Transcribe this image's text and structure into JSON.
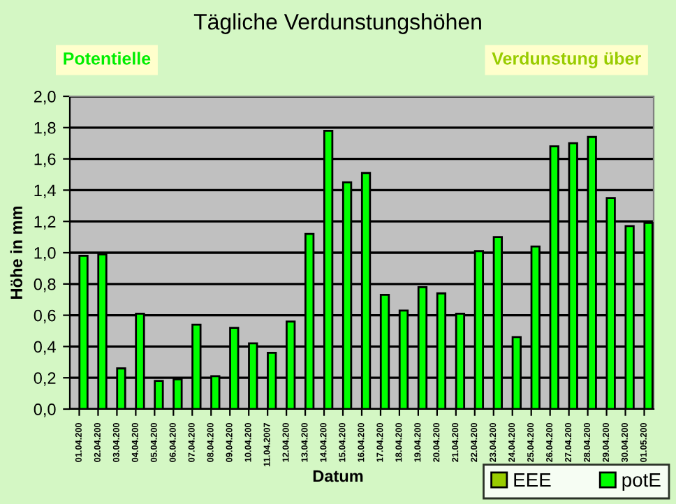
{
  "chart_data": {
    "type": "bar",
    "title": "Tägliche Verdunstungshöhen",
    "xlabel": "Datum",
    "ylabel": "Höhe in mm",
    "annotations": [
      "Potentielle",
      "Verdunstung über"
    ],
    "categories": [
      "01.04.200",
      "02.04.200",
      "03.04.200",
      "04.04.200",
      "05.04.200",
      "06.04.200",
      "07.04.200",
      "08.04.200",
      "09.04.200",
      "10.04.200",
      "11.04.2007",
      "12.04.200",
      "13.04.200",
      "14.04.200",
      "15.04.200",
      "16.04.200",
      "17.04.200",
      "18.04.200",
      "19.04.200",
      "20.04.200",
      "21.04.200",
      "22.04.200",
      "23.04.200",
      "24.04.200",
      "25.04.200",
      "26.04.200",
      "27.04.200",
      "28.04.200",
      "29.04.200",
      "30.04.200",
      "01.05.200"
    ],
    "series": [
      {
        "name": "EEE",
        "color": "#99cc00",
        "values": [
          null,
          null,
          null,
          null,
          null,
          null,
          null,
          null,
          null,
          null,
          null,
          null,
          null,
          null,
          null,
          null,
          null,
          null,
          null,
          null,
          null,
          null,
          null,
          null,
          null,
          null,
          null,
          null,
          null,
          null,
          null
        ]
      },
      {
        "name": "potE",
        "color": "#00ff00",
        "values": [
          0.98,
          0.99,
          0.26,
          0.61,
          0.18,
          0.19,
          0.54,
          0.21,
          0.52,
          0.42,
          0.36,
          0.56,
          1.12,
          1.78,
          1.45,
          1.51,
          0.73,
          0.63,
          0.78,
          0.74,
          0.61,
          1.01,
          1.1,
          0.46,
          1.04,
          1.68,
          1.7,
          1.74,
          1.35,
          1.17,
          1.19
        ]
      }
    ],
    "ylim": [
      0,
      2
    ],
    "yticks": [
      {
        "value": 0,
        "label": "0,0"
      },
      {
        "value": 0.2,
        "label": "0,2"
      },
      {
        "value": 0.4,
        "label": "0,4"
      },
      {
        "value": 0.6,
        "label": "0,6"
      },
      {
        "value": 0.8,
        "label": "0,8"
      },
      {
        "value": 1,
        "label": "1,0"
      },
      {
        "value": 1.2,
        "label": "1,2"
      },
      {
        "value": 1.4,
        "label": "1,4"
      },
      {
        "value": 1.6,
        "label": "1,6"
      },
      {
        "value": 1.8,
        "label": "1,8"
      },
      {
        "value": 2,
        "label": "2,0"
      }
    ],
    "grid": "y",
    "legend": "bottom right"
  }
}
